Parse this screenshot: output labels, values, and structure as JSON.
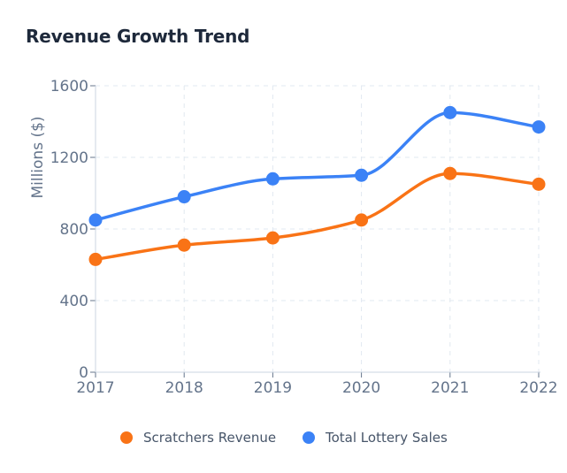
{
  "title": "Revenue Growth Trend",
  "chart_data": {
    "type": "line",
    "title": "Revenue Growth Trend",
    "xlabel": "",
    "ylabel": "Millions ($)",
    "x": [
      "2017",
      "2018",
      "2019",
      "2020",
      "2021",
      "2022"
    ],
    "ylim": [
      0,
      1600
    ],
    "yticks": [
      0,
      400,
      800,
      1200,
      1600
    ],
    "grid": true,
    "legend_position": "bottom-center",
    "series": [
      {
        "name": "Scratchers Revenue",
        "color": "#f97316",
        "values": [
          630,
          710,
          750,
          850,
          1110,
          1050
        ]
      },
      {
        "name": "Total Lottery Sales",
        "color": "#3b82f6",
        "values": [
          850,
          980,
          1080,
          1100,
          1450,
          1370
        ]
      }
    ]
  }
}
